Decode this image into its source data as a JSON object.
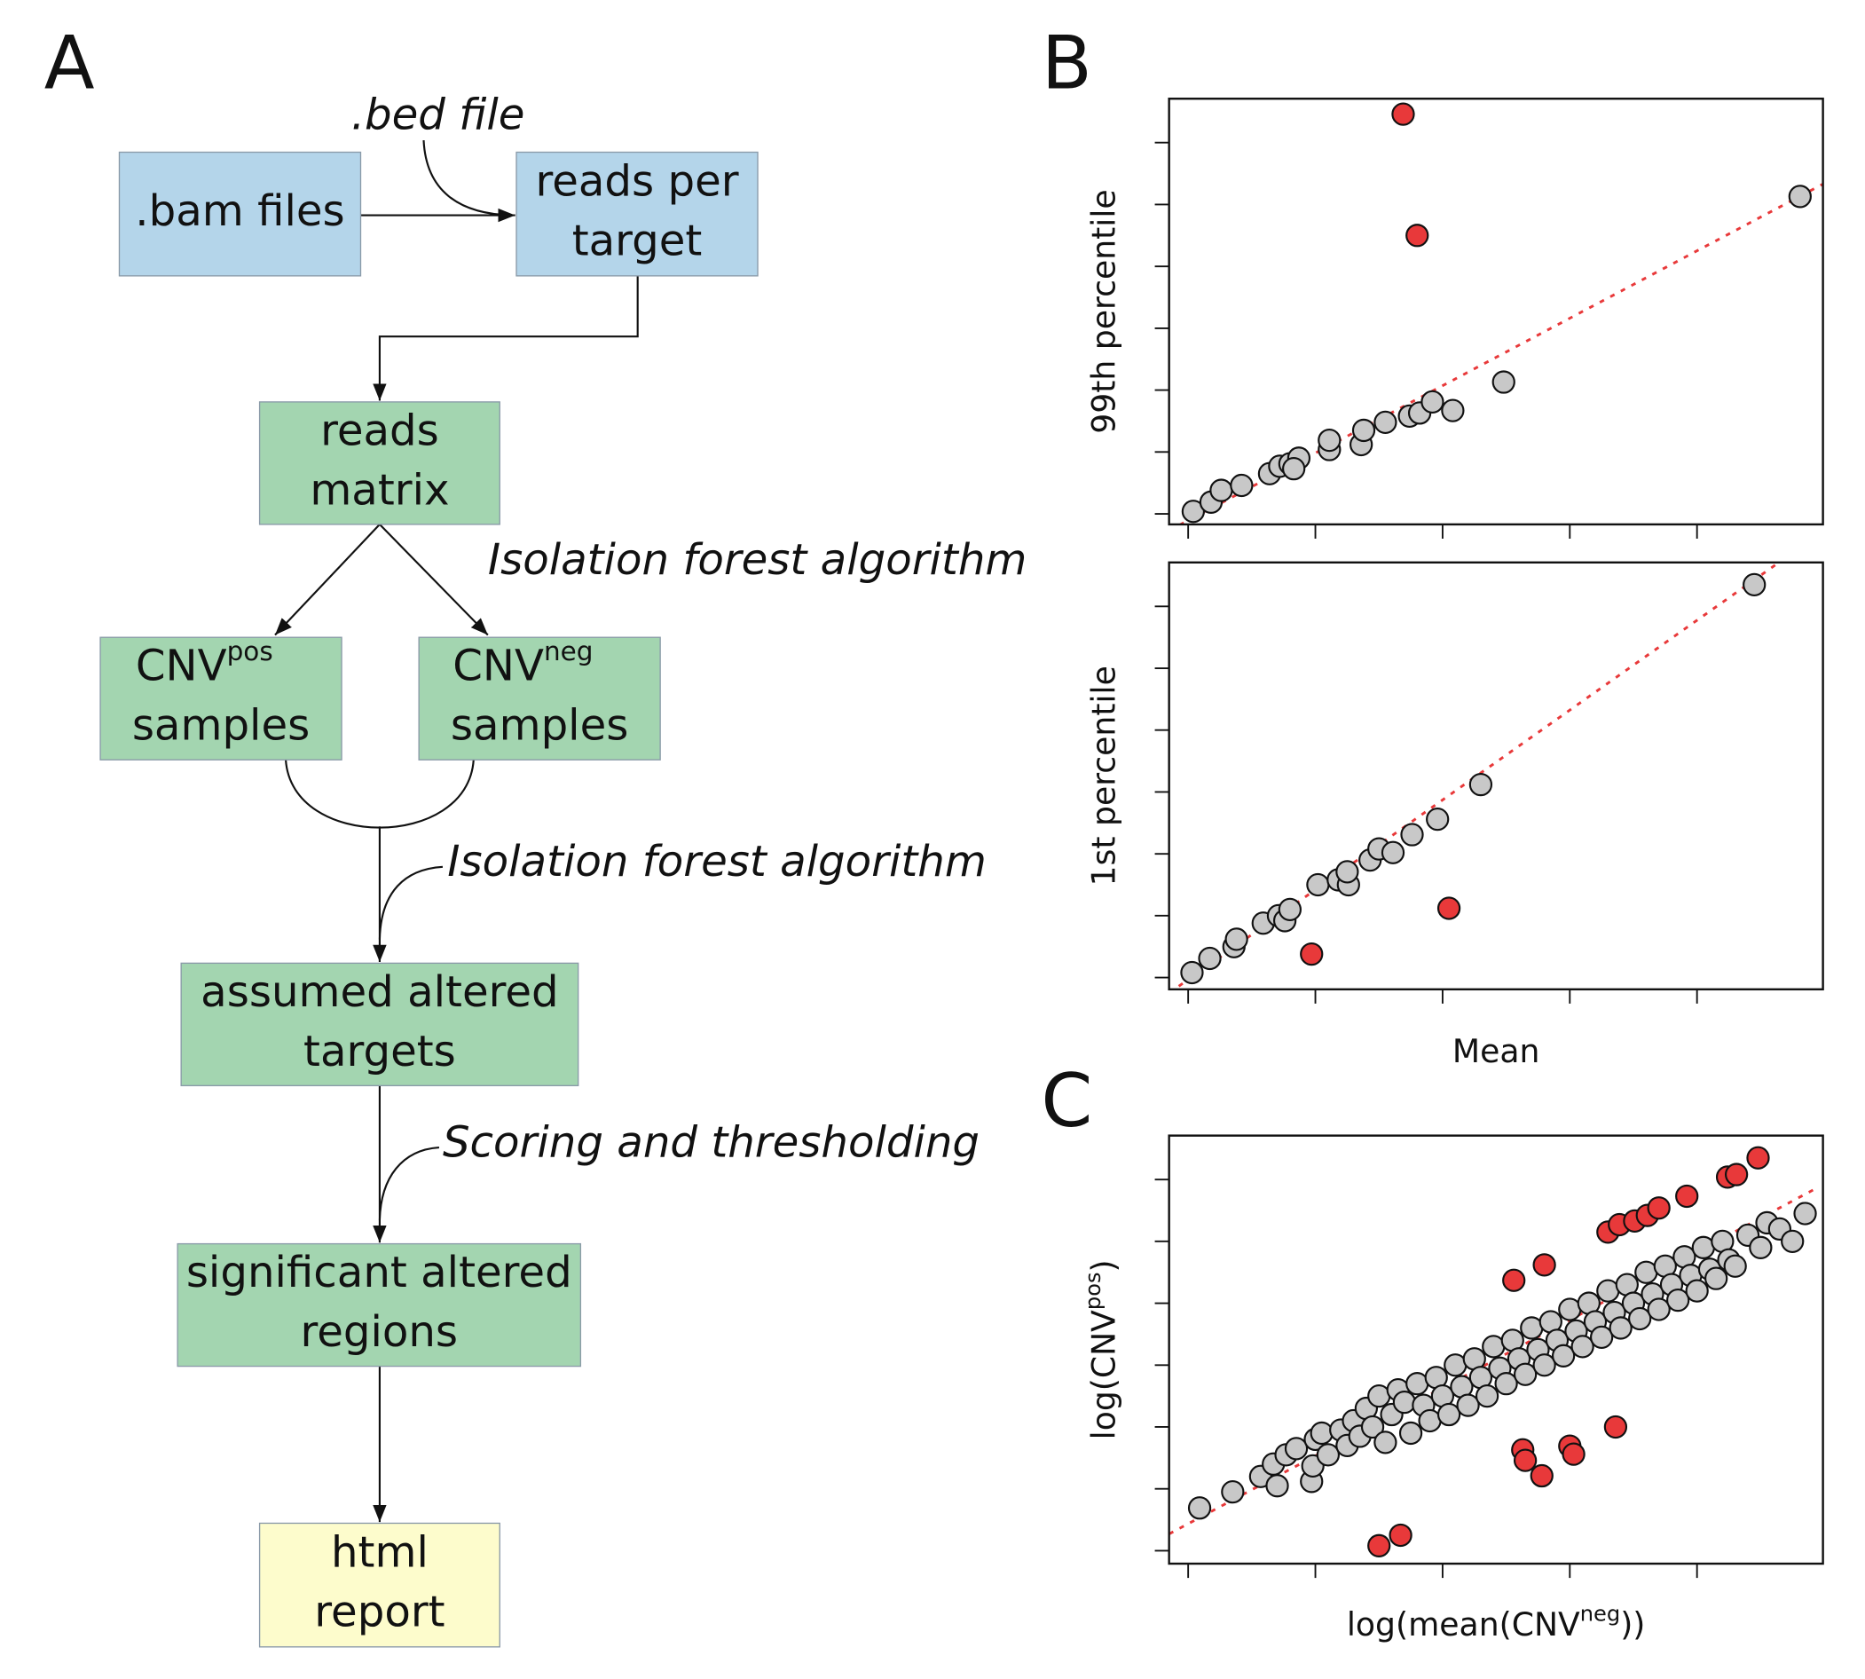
{
  "panel_labels": [
    "A",
    "B",
    "C"
  ],
  "flowchart": {
    "nodes": [
      {
        "lines": [
          ".bam files"
        ]
      },
      {
        "lines": [
          "reads per",
          "target"
        ]
      },
      {
        "lines": [
          "reads",
          "matrix"
        ]
      },
      {
        "lines": [
          "CNV",
          "samples"
        ],
        "superscript": "pos"
      },
      {
        "lines": [
          "CNV",
          "samples"
        ],
        "superscript": "neg"
      },
      {
        "lines": [
          "assumed altered",
          "targets"
        ]
      },
      {
        "lines": [
          "significant altered",
          "regions"
        ]
      },
      {
        "lines": [
          "html",
          "report"
        ]
      }
    ],
    "edge_labels": [
      ".bed file",
      "Isolation forest algorithm",
      "Isolation forest algorithm",
      "Scoring and thresholding"
    ]
  },
  "chart_data": [
    {
      "type": "scatter",
      "y_label": "99th percentile",
      "xlim": [
        -0.15,
        4.99
      ],
      "ylim": [
        -0.17,
        6.71
      ],
      "xticks": [
        0,
        1,
        2,
        3,
        4
      ],
      "yticks": [
        0,
        1,
        2,
        3,
        4,
        5,
        6
      ],
      "series": [
        {
          "color": "#c8c8c8",
          "x": [
            0.04,
            0.18,
            0.26,
            0.42,
            0.64,
            0.72,
            0.8,
            0.87,
            0.83,
            1.11,
            1.11,
            1.36,
            1.38,
            1.55,
            1.74,
            1.82,
            1.92,
            2.08,
            2.48,
            4.81
          ],
          "values": [
            0.04,
            0.19,
            0.38,
            0.46,
            0.65,
            0.77,
            0.81,
            0.9,
            0.73,
            1.04,
            1.19,
            1.12,
            1.35,
            1.48,
            1.58,
            1.63,
            1.81,
            1.67,
            2.13,
            5.13
          ]
        },
        {
          "color": "#e8393a",
          "x": [
            1.69,
            1.8
          ],
          "values": [
            6.46,
            4.5
          ]
        }
      ],
      "trend_line": {
        "color": "#e8393a",
        "x": [
          -0.15,
          4.99
        ],
        "values": [
          -0.27,
          5.33
        ]
      }
    },
    {
      "type": "scatter",
      "y_label": "1st percentile",
      "x_label": "Mean",
      "xlim": [
        -0.15,
        4.99
      ],
      "ylim": [
        -0.19,
        6.71
      ],
      "xticks": [
        0,
        1,
        2,
        3,
        4
      ],
      "yticks": [
        0,
        1,
        2,
        3,
        4,
        5,
        6
      ],
      "series": [
        {
          "color": "#c8c8c8",
          "x": [
            0.03,
            0.17,
            0.36,
            0.38,
            0.59,
            0.71,
            0.76,
            0.8,
            1.02,
            1.18,
            1.26,
            1.25,
            1.43,
            1.5,
            1.61,
            1.76,
            1.96,
            2.3,
            4.45
          ],
          "values": [
            0.08,
            0.31,
            0.5,
            0.62,
            0.88,
            1.0,
            0.92,
            1.1,
            1.5,
            1.58,
            1.5,
            1.71,
            1.9,
            2.08,
            2.02,
            2.31,
            2.56,
            3.12,
            6.35
          ]
        },
        {
          "color": "#e8393a",
          "x": [
            0.97,
            2.05
          ],
          "values": [
            0.38,
            1.12
          ]
        }
      ],
      "trend_line": {
        "color": "#e8393a",
        "x": [
          -0.15,
          4.63
        ],
        "values": [
          -0.25,
          6.69
        ]
      }
    },
    {
      "type": "scatter",
      "y_label_parts": [
        "log(CNV",
        "pos",
        ")"
      ],
      "x_label_parts": [
        "log(mean(CNV",
        "neg",
        "))"
      ],
      "xlim": [
        -0.15,
        4.99
      ],
      "ylim": [
        -0.21,
        6.71
      ],
      "xticks": [
        0,
        1,
        2,
        3,
        4
      ],
      "yticks": [
        0,
        1,
        2,
        3,
        4,
        5,
        6
      ],
      "series": [
        {
          "color": "#c8c8c8",
          "x": [
            0.09,
            0.35,
            0.57,
            0.67,
            0.7,
            0.77,
            0.85,
            0.97,
            0.98,
            1.0,
            1.05,
            1.1,
            1.2,
            1.25,
            1.3,
            1.35,
            1.4,
            1.45,
            1.5,
            1.55,
            1.6,
            1.65,
            1.7,
            1.75,
            1.8,
            1.85,
            1.9,
            1.95,
            2.0,
            2.05,
            2.1,
            2.15,
            2.2,
            2.25,
            2.3,
            2.35,
            2.4,
            2.45,
            2.5,
            2.55,
            2.6,
            2.65,
            2.7,
            2.75,
            2.8,
            2.85,
            2.9,
            2.95,
            3.0,
            3.05,
            3.1,
            3.15,
            3.2,
            3.25,
            3.3,
            3.35,
            3.4,
            3.45,
            3.5,
            3.55,
            3.6,
            3.65,
            3.7,
            3.75,
            3.8,
            3.85,
            3.9,
            3.95,
            4.0,
            4.05,
            4.1,
            4.15,
            4.2,
            4.25,
            4.3,
            4.4,
            4.5,
            4.55,
            4.65,
            4.75,
            4.85
          ],
          "values": [
            0.69,
            0.95,
            1.2,
            1.4,
            1.05,
            1.55,
            1.65,
            1.12,
            1.37,
            1.8,
            1.9,
            1.55,
            1.95,
            1.7,
            2.1,
            1.85,
            2.3,
            2.0,
            2.5,
            1.75,
            2.2,
            2.6,
            2.4,
            1.9,
            2.7,
            2.35,
            2.1,
            2.8,
            2.5,
            2.2,
            3.0,
            2.65,
            2.35,
            3.1,
            2.8,
            2.5,
            3.3,
            2.95,
            2.7,
            3.4,
            3.1,
            2.85,
            3.6,
            3.25,
            3.0,
            3.7,
            3.4,
            3.15,
            3.9,
            3.55,
            3.3,
            4.0,
            3.7,
            3.45,
            4.2,
            3.85,
            3.6,
            4.3,
            4.0,
            3.75,
            4.5,
            4.15,
            3.9,
            4.6,
            4.3,
            4.05,
            4.75,
            4.45,
            4.2,
            4.9,
            4.55,
            4.4,
            5.0,
            4.7,
            4.6,
            5.1,
            4.9,
            5.3,
            5.2,
            5.0,
            5.45
          ]
        },
        {
          "color": "#e8393a",
          "x": [
            1.5,
            1.67,
            2.56,
            2.8,
            2.63,
            2.65,
            2.78,
            3.0,
            3.03,
            3.36,
            3.3,
            3.39,
            3.51,
            3.61,
            3.7,
            3.92,
            4.24,
            4.31,
            4.48
          ],
          "values": [
            0.08,
            0.25,
            4.37,
            4.62,
            1.63,
            1.46,
            1.21,
            1.69,
            1.56,
            2.0,
            5.15,
            5.27,
            5.33,
            5.42,
            5.54,
            5.73,
            6.04,
            6.08,
            6.35
          ]
        }
      ],
      "trend_line": {
        "color": "#e8393a",
        "x": [
          -0.15,
          4.93
        ],
        "values": [
          0.27,
          5.85
        ]
      }
    }
  ]
}
